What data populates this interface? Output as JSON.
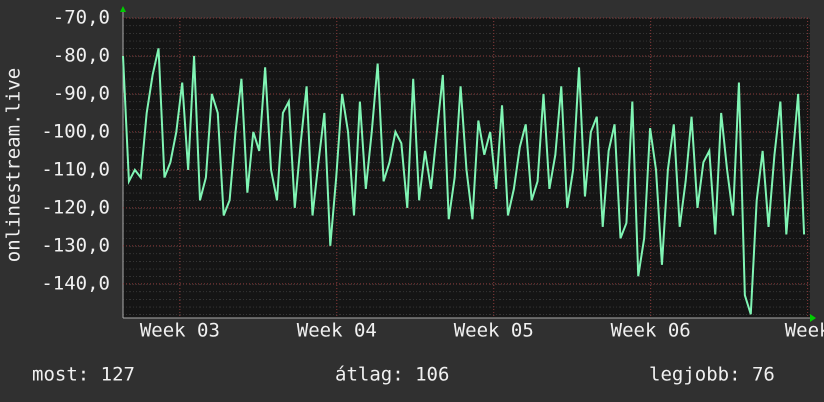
{
  "chart_data": {
    "type": "line",
    "y_label": "onlinestream.live",
    "x": [
      0,
      1,
      2,
      3,
      4,
      5,
      6,
      7,
      8,
      9,
      10,
      11,
      12,
      13,
      14,
      15,
      16,
      17,
      18,
      19,
      20,
      21,
      22,
      23,
      24,
      25,
      26,
      27,
      28,
      29,
      30,
      31,
      32,
      33,
      34,
      35,
      36,
      37,
      38,
      39,
      40,
      41,
      42,
      43,
      44,
      45,
      46,
      47,
      48,
      49,
      50,
      51,
      52,
      53,
      54,
      55,
      56,
      57,
      58,
      59,
      60,
      61,
      62,
      63,
      64,
      65,
      66,
      67,
      68,
      69,
      70,
      71,
      72,
      73,
      74,
      75,
      76,
      77,
      78,
      79,
      80,
      81,
      82,
      83,
      84,
      85,
      86,
      87,
      88,
      89,
      90,
      91,
      92,
      93,
      94,
      95,
      96,
      97,
      98,
      99,
      100,
      101,
      102,
      103,
      104,
      105,
      106,
      107,
      108,
      109,
      110,
      111,
      112,
      113,
      114,
      115
    ],
    "values": [
      -80,
      -113,
      -110,
      -112,
      -95,
      -85,
      -78,
      -112,
      -108,
      -100,
      -87,
      -110,
      -80,
      -118,
      -112,
      -90,
      -95,
      -122,
      -118,
      -100,
      -86,
      -116,
      -100,
      -105,
      -83,
      -110,
      -118,
      -95,
      -92,
      -120,
      -103,
      -88,
      -122,
      -108,
      -95,
      -130,
      -112,
      -90,
      -100,
      -122,
      -92,
      -115,
      -100,
      -82,
      -113,
      -108,
      -100,
      -103,
      -120,
      -86,
      -118,
      -105,
      -115,
      -100,
      -85,
      -123,
      -112,
      -88,
      -110,
      -123,
      -97,
      -106,
      -100,
      -115,
      -93,
      -122,
      -115,
      -104,
      -98,
      -118,
      -113,
      -90,
      -115,
      -106,
      -88,
      -120,
      -110,
      -83,
      -117,
      -100,
      -96,
      -125,
      -105,
      -98,
      -128,
      -124,
      -92,
      -138,
      -128,
      -99,
      -110,
      -135,
      -110,
      -98,
      -125,
      -113,
      -96,
      -120,
      -108,
      -105,
      -127,
      -95,
      -110,
      -122,
      -87,
      -143,
      -148,
      -118,
      -105,
      -125,
      -106,
      -92,
      -127,
      -108,
      -90,
      -127
    ],
    "color": "#80f5b4",
    "ylim": [
      -149,
      -70
    ],
    "yticks": [
      {
        "value": -70,
        "label": "-70,0"
      },
      {
        "value": -80,
        "label": "-80,0"
      },
      {
        "value": -90,
        "label": "-90,0"
      },
      {
        "value": -100,
        "label": "-100,0"
      },
      {
        "value": -110,
        "label": "-110,0"
      },
      {
        "value": -120,
        "label": "-120,0"
      },
      {
        "value": -130,
        "label": "-130,0"
      },
      {
        "value": -140,
        "label": "-140,0"
      }
    ],
    "xlim": [
      0,
      116
    ],
    "xticks": [
      {
        "value": 9.6,
        "label": "Week 03"
      },
      {
        "value": 36.1,
        "label": "Week 04"
      },
      {
        "value": 62.6,
        "label": "Week 05"
      },
      {
        "value": 89.1,
        "label": "Week 06"
      },
      {
        "value": 115.6,
        "label": "Week"
      }
    ],
    "grid": true,
    "stats": [
      "most: 127",
      "átlag: 106",
      "legjobb: 76"
    ]
  }
}
